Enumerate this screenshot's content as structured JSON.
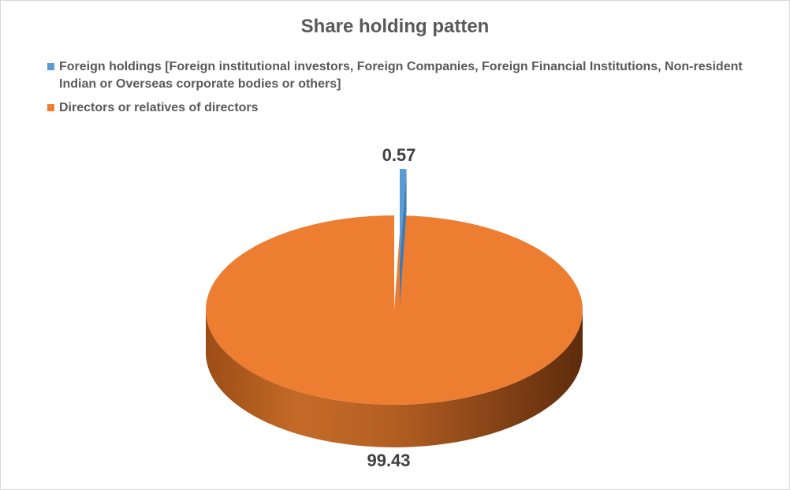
{
  "chart_data": {
    "type": "pie",
    "title": "Share holding patten",
    "categories": [
      "Foreign holdings [Foreign institutional investors, Foreign Companies, Foreign Financial Institutions, Non-resident Indian or Overseas corporate bodies or others]",
      "Directors or relatives of directors"
    ],
    "values": [
      0.57,
      99.43
    ],
    "data_labels": [
      "0.57",
      "99.43"
    ],
    "colors": [
      "#5B9BD5",
      "#ED7D31"
    ],
    "legend_position": "top",
    "style": "3d-exploded"
  }
}
